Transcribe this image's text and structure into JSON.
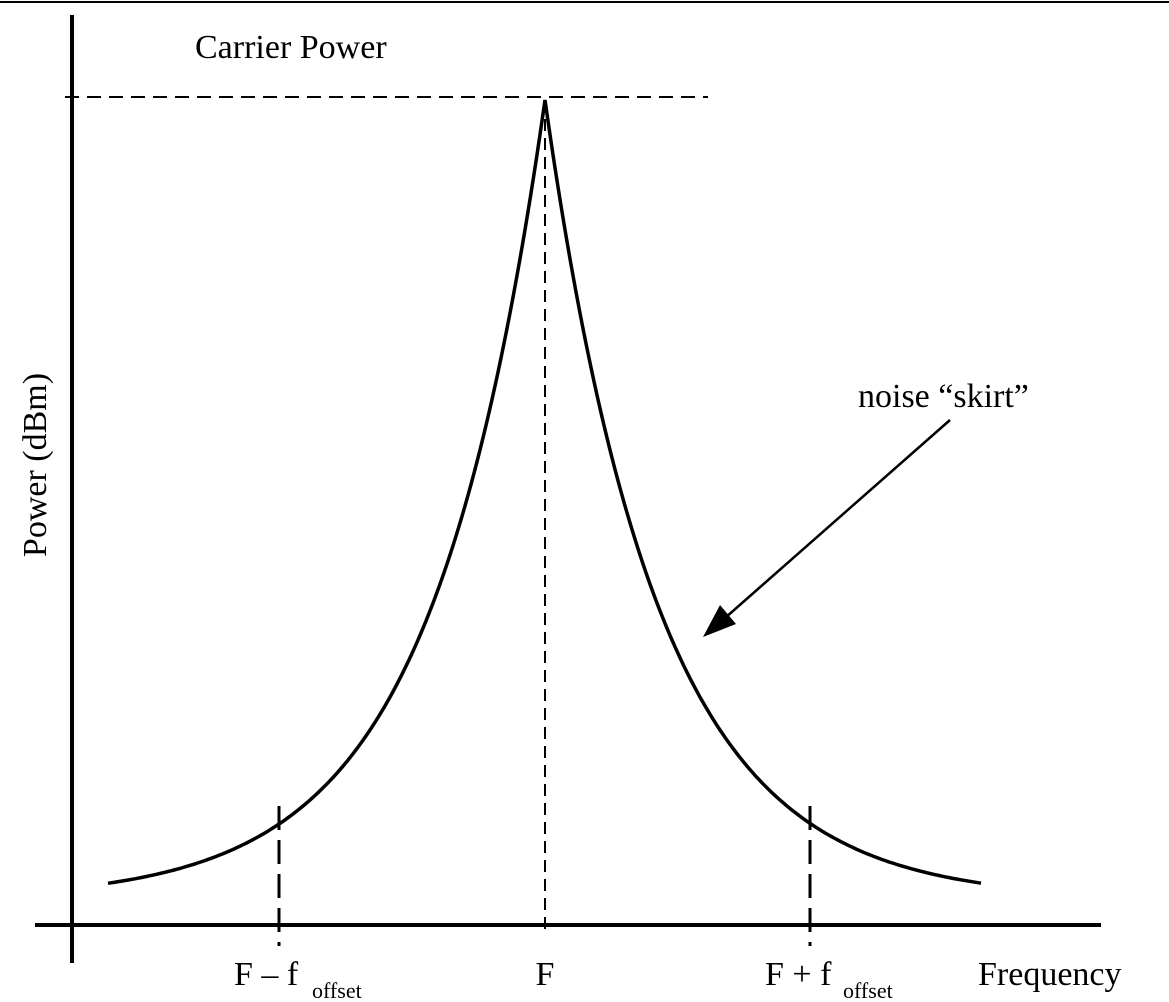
{
  "title": "Carrier Power",
  "y_axis_label": "Power (dBm)",
  "x_axis_label": "Frequency",
  "annotation": "noise “skirt”",
  "ticks": [
    {
      "label": "F – f",
      "subscript": "offset"
    },
    {
      "label": "F"
    },
    {
      "label": "F + f",
      "subscript": "offset"
    }
  ]
}
